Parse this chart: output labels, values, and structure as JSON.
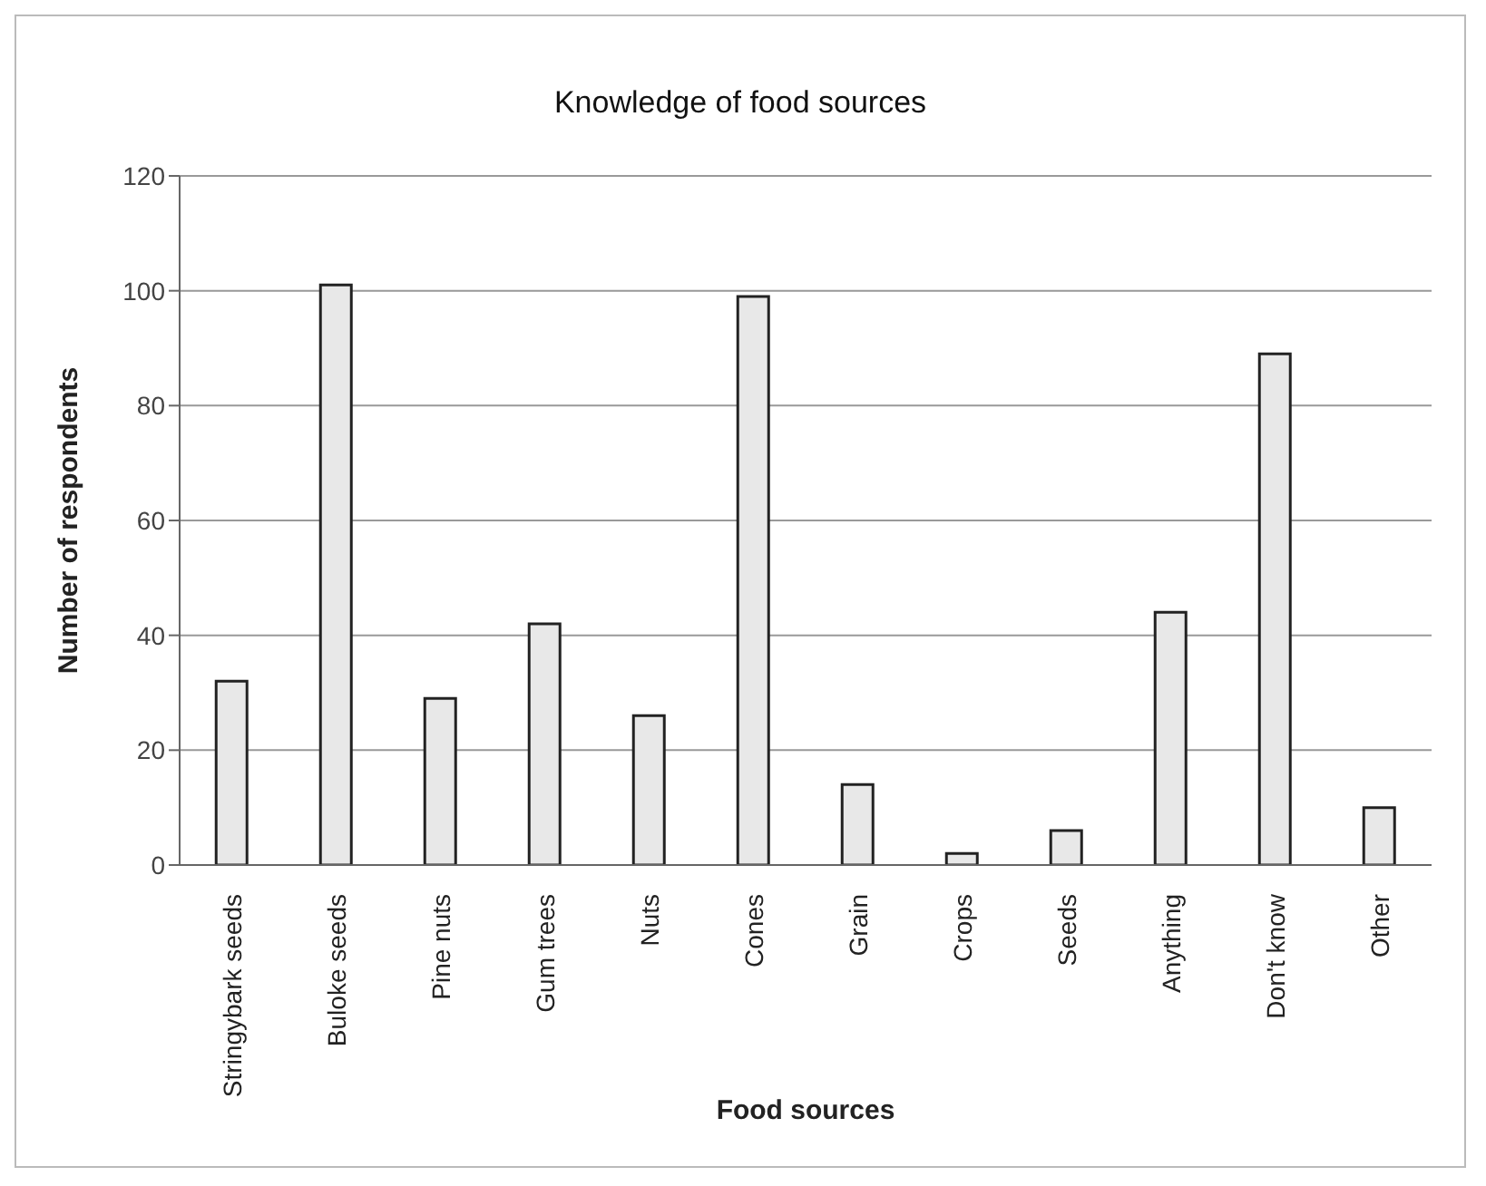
{
  "chart_data": {
    "type": "bar",
    "title": "Knowledge of food sources",
    "xlabel": "Food sources",
    "ylabel": "Number of respondents",
    "categories": [
      "Stringybark seeds",
      "Buloke seeds",
      "Pine nuts",
      "Gum trees",
      "Nuts",
      "Cones",
      "Grain",
      "Crops",
      "Seeds",
      "Anything",
      "Don't know",
      "Other"
    ],
    "values": [
      32,
      101,
      29,
      42,
      26,
      99,
      14,
      2,
      6,
      44,
      89,
      10
    ],
    "color": "#e8e8e8",
    "ylim": [
      0,
      120
    ],
    "yticks": [
      0,
      20,
      40,
      60,
      80,
      100,
      120
    ],
    "grid": "y"
  }
}
